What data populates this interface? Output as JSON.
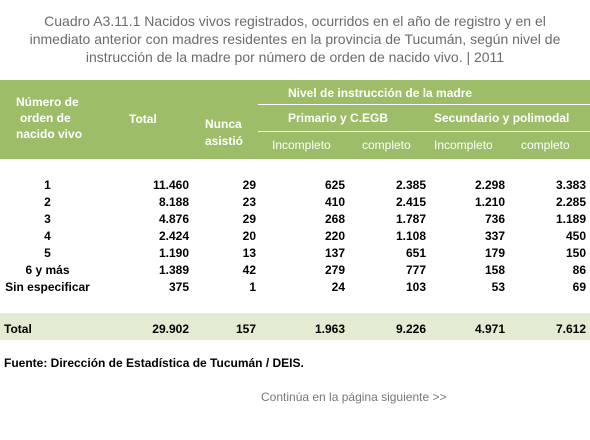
{
  "title": {
    "lines": [
      "Cuadro A3.11.1 Nacidos vivos registrados, ocurridos en el año de registro y en el",
      "inmediato anterior con madres residentes en la provincia de Tucumán, según nivel de",
      "instrucción de la madre por número de orden de nacido vivo. |  2011"
    ]
  },
  "table": {
    "header": {
      "order": [
        "Número de",
        "orden de",
        "nacido vivo"
      ],
      "total": "Total",
      "never": [
        "Nunca",
        "asistió"
      ],
      "level": "Nivel de instrucción de la madre",
      "groups": [
        "Primario y C.EGB",
        "Secundario y polimodal"
      ],
      "subs": [
        "Incompleto",
        "completo",
        "Incompleto",
        "completo"
      ]
    },
    "rows": [
      [
        "1",
        "11.460",
        "29",
        "625",
        "2.385",
        "2.298",
        "3.383"
      ],
      [
        "2",
        "8.188",
        "23",
        "410",
        "2.415",
        "1.210",
        "2.285"
      ],
      [
        "3",
        "4.876",
        "29",
        "268",
        "1.787",
        "736",
        "1.189"
      ],
      [
        "4",
        "2.424",
        "20",
        "220",
        "1.108",
        "337",
        "450"
      ],
      [
        "5",
        "1.190",
        "13",
        "137",
        "651",
        "179",
        "150"
      ],
      [
        "6 y más",
        "1.389",
        "42",
        "279",
        "777",
        "158",
        "86"
      ],
      [
        "Sin especificar",
        "375",
        "1",
        "24",
        "103",
        "53",
        "69"
      ]
    ],
    "total": [
      "Total",
      "29.902",
      "157",
      "1.963",
      "9.226",
      "4.971",
      "7.612"
    ]
  },
  "source": "Fuente: Dirección de Estadística de Tucumán / DEIS.",
  "continue": "Continúa en la página siguiente >>"
}
